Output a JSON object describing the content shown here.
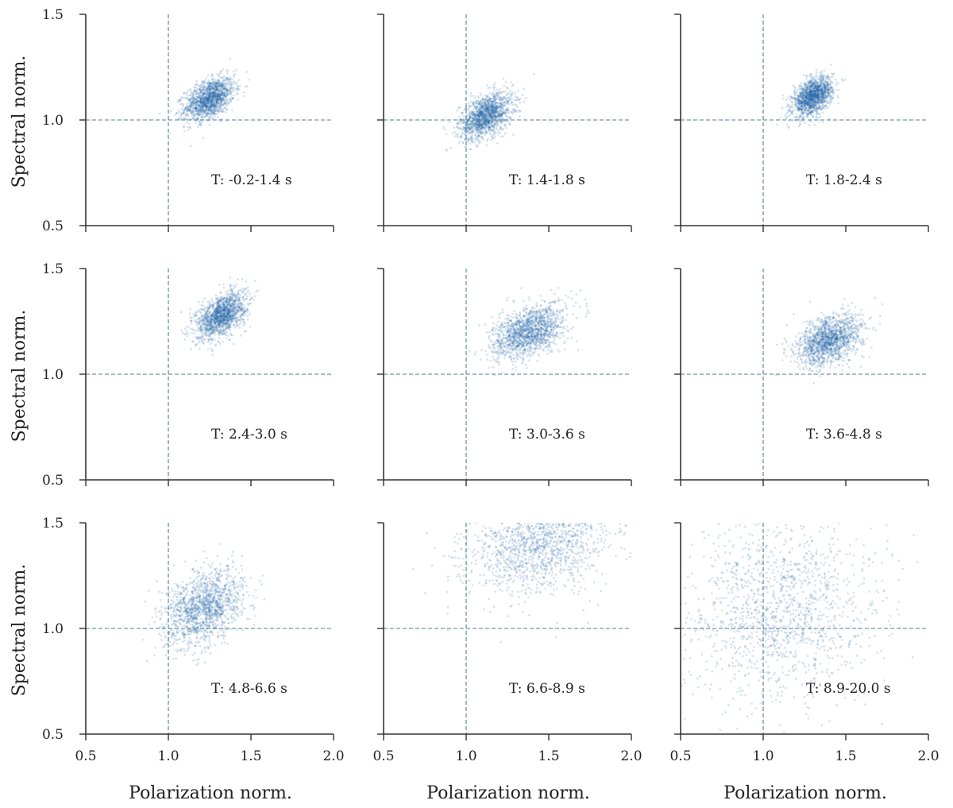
{
  "chart_data": {
    "type": "scatter",
    "layout": "3x3 grid of scatter panels",
    "xlabel": "Polarization norm.",
    "ylabel": "Spectral norm.",
    "xlim": [
      0.5,
      2.0
    ],
    "ylim": [
      0.5,
      1.5
    ],
    "xticks": [
      "0.5",
      "1.0",
      "1.5",
      "2.0"
    ],
    "yticks": [
      "0.5",
      "1.0",
      "1.5"
    ],
    "reference_lines": {
      "x": 1.0,
      "y": 1.0,
      "style": "dashed"
    },
    "point_color": "#1f63a8",
    "panels": [
      {
        "label": "T: -0.2-1.4 s",
        "center_x": 1.25,
        "center_y": 1.1,
        "spread_x": 0.075,
        "spread_y": 0.05,
        "correlation": 0.45
      },
      {
        "label": "T: 1.4-1.8 s",
        "center_x": 1.12,
        "center_y": 1.02,
        "spread_x": 0.08,
        "spread_y": 0.055,
        "correlation": 0.45
      },
      {
        "label": "T: 1.8-2.4 s",
        "center_x": 1.3,
        "center_y": 1.11,
        "spread_x": 0.06,
        "spread_y": 0.045,
        "correlation": 0.45
      },
      {
        "label": "T: 2.4-3.0 s",
        "center_x": 1.32,
        "center_y": 1.28,
        "spread_x": 0.075,
        "spread_y": 0.055,
        "correlation": 0.5
      },
      {
        "label": "T: 3.0-3.6 s",
        "center_x": 1.38,
        "center_y": 1.2,
        "spread_x": 0.11,
        "spread_y": 0.065,
        "correlation": 0.45
      },
      {
        "label": "T: 3.6-4.8 s",
        "center_x": 1.4,
        "center_y": 1.16,
        "spread_x": 0.1,
        "spread_y": 0.06,
        "correlation": 0.4
      },
      {
        "label": "T: 4.8-6.6 s",
        "center_x": 1.22,
        "center_y": 1.1,
        "spread_x": 0.12,
        "spread_y": 0.09,
        "correlation": 0.35
      },
      {
        "label": "T: 6.6-8.9 s",
        "center_x": 1.45,
        "center_y": 1.4,
        "spread_x": 0.22,
        "spread_y": 0.12,
        "correlation": 0.3
      },
      {
        "label": "T: 8.9-20.0 s",
        "center_x": 1.1,
        "center_y": 1.08,
        "spread_x": 0.3,
        "spread_y": 0.22,
        "correlation": 0.1
      }
    ]
  }
}
